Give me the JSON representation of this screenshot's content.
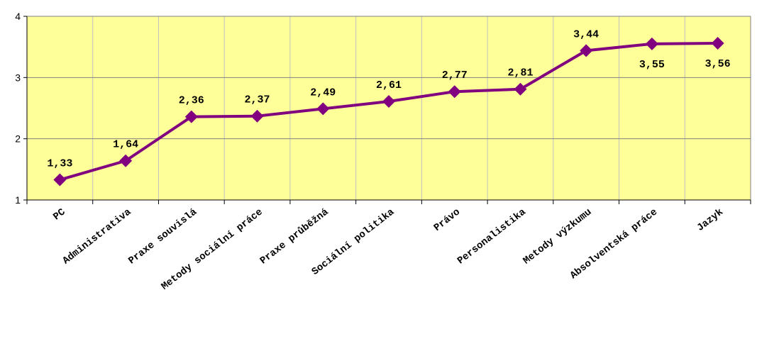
{
  "chart_data": {
    "type": "line",
    "categories": [
      "PC",
      "Administrativa",
      "Praxe souvislá",
      "Metody sociální práce",
      "Praxe průběžná",
      "Sociální politika",
      "Právo",
      "Personalistika",
      "Metody výzkumu",
      "Absolventská práce",
      "Jazyk"
    ],
    "values": [
      1.33,
      1.64,
      2.36,
      2.37,
      2.49,
      2.61,
      2.77,
      2.81,
      3.44,
      3.55,
      3.56
    ],
    "value_labels": [
      "1,33",
      "1,64",
      "2,36",
      "2,37",
      "2,49",
      "2,61",
      "2,77",
      "2,81",
      "3,44",
      "3,55",
      "3,56"
    ],
    "yticks": [
      "1",
      "2",
      "3",
      "4"
    ],
    "ylim": [
      1,
      4
    ],
    "title": "",
    "xlabel": "",
    "ylabel": "",
    "grid": true,
    "colors": {
      "plot_background": "#ffff99",
      "series": "#800080",
      "grid": "#c0c0c0"
    }
  }
}
